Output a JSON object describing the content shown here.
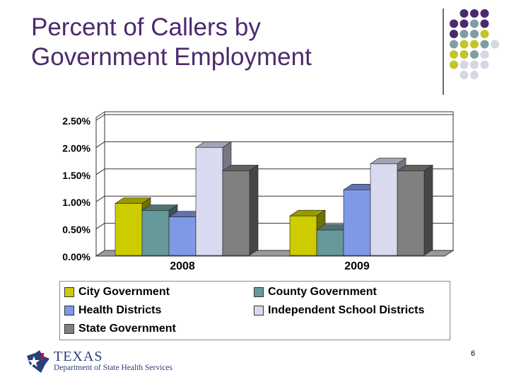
{
  "slide": {
    "title_line1": "Percent of Callers by",
    "title_line2": "Government Employment",
    "page_number": "6"
  },
  "logo": {
    "top": "TEXAS",
    "bottom": "Department of State Health Services"
  },
  "colors": {
    "title": "#4b2a6e",
    "dot_purple": "#4b2a6e",
    "dot_teal": "#7f9ea3",
    "dot_yellow": "#c5c527",
    "dot_lavender": "#d6d6e6"
  },
  "chart_data": {
    "type": "bar",
    "categories": [
      "2008",
      "2009"
    ],
    "series": [
      {
        "name": "City Government",
        "values": [
          0.97,
          0.74
        ],
        "color": "#cccc00"
      },
      {
        "name": "County Government",
        "values": [
          0.84,
          0.48
        ],
        "color": "#669999"
      },
      {
        "name": "Health Districts",
        "values": [
          0.72,
          1.22
        ],
        "color": "#8099e6"
      },
      {
        "name": "Independent School Districts",
        "values": [
          2.0,
          1.7
        ],
        "color": "#d9d9ef"
      },
      {
        "name": "State Government",
        "values": [
          1.57,
          1.57
        ],
        "color": "#808080"
      }
    ],
    "yticks": [
      "2.50%",
      "2.00%",
      "1.50%",
      "1.00%",
      "0.50%",
      "0.00%"
    ],
    "ylim": [
      0,
      2.5
    ],
    "grid": true,
    "legend_position": "bottom",
    "title": "",
    "xlabel": "",
    "ylabel": ""
  }
}
